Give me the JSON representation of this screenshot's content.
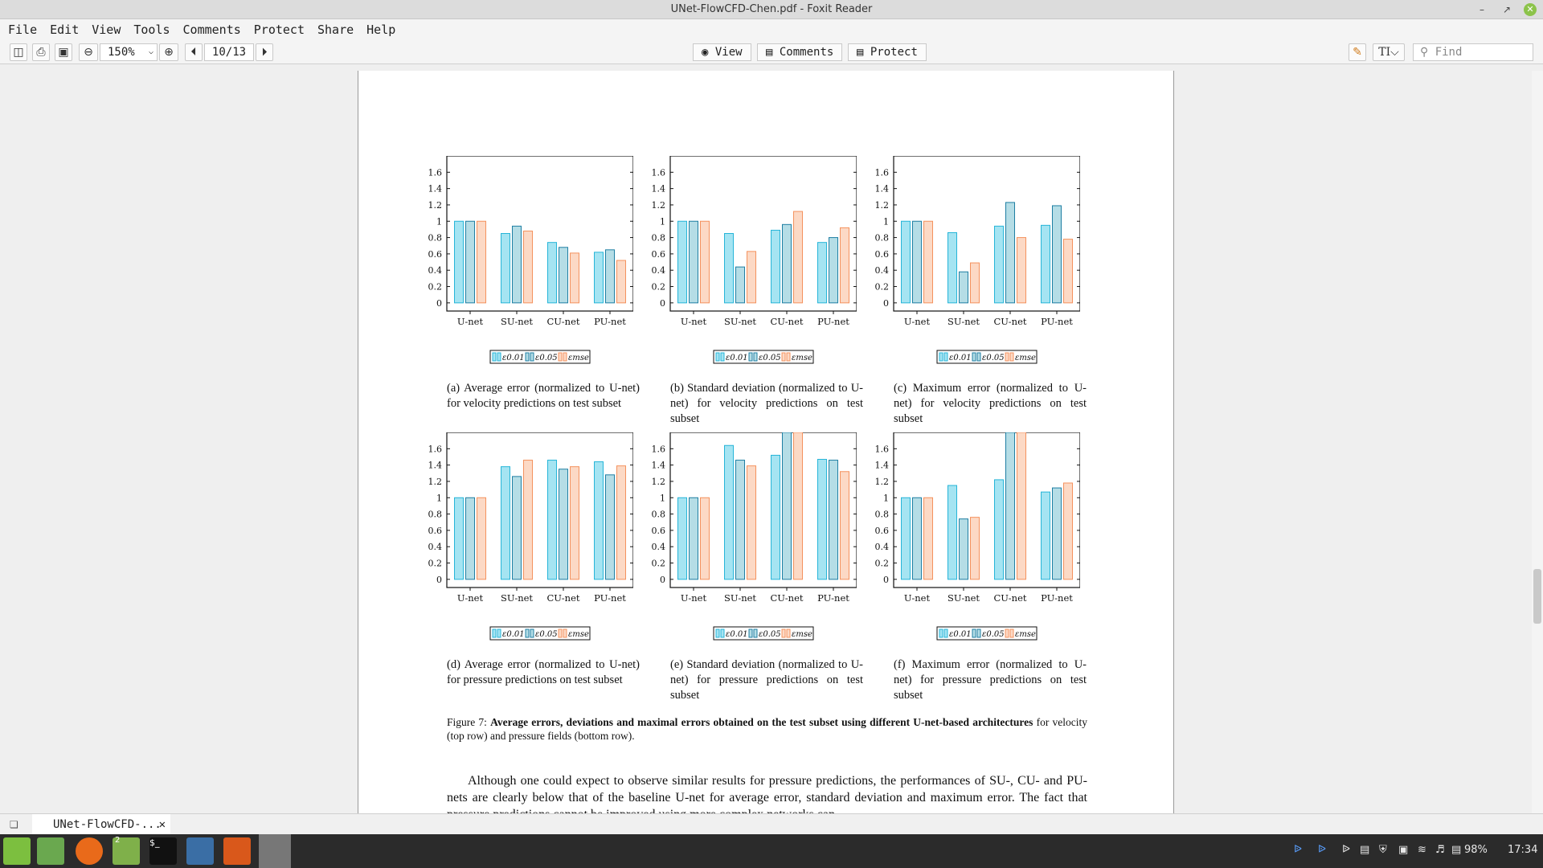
{
  "window": {
    "title": "UNet-FlowCFD-Chen.pdf - Foxit Reader"
  },
  "menu": [
    "File",
    "Edit",
    "View",
    "Tools",
    "Comments",
    "Protect",
    "Share",
    "Help"
  ],
  "toolbar": {
    "zoom": "150%",
    "page": "10/13",
    "modes": [
      "View",
      "Comments",
      "Protect"
    ],
    "find_placeholder": "Find"
  },
  "figure": {
    "captions": [
      "(a) Average error (normalized to U-net) for velocity predictions on test subset",
      "(b) Standard deviation (normalized to U-net) for velocity predictions on test subset",
      "(c) Maximum error (normalized to U-net) for velocity predictions on test subset",
      "(d) Average error (normalized to U-net) for pressure predictions on test subset",
      "(e) Standard deviation (normalized to U-net) for pressure predictions on test subset",
      "(f) Maximum error (normalized to U-net) for pressure predictions on test subset"
    ],
    "caption_label": "Figure 7:",
    "caption_bold": "Average errors, deviations and maximal errors obtained on the test subset using different U-net-based architectures",
    "caption_rest": " for velocity (top row) and pressure fields (bottom row).",
    "legend": [
      "ε0.01",
      "ε0.05",
      "εmse"
    ]
  },
  "body_text": "Although one could expect to observe similar results for pressure predictions, the performances of SU-, CU- and PU-nets are clearly below that of the baseline U-net for average error, standard deviation and maximum error. The fact that pressure predictions cannot be improved using more complex networks can",
  "chart_data": [
    {
      "type": "bar",
      "categories": [
        "U-net",
        "SU-net",
        "CU-net",
        "PU-net"
      ],
      "series": [
        {
          "name": "ε0.01",
          "values": [
            1.0,
            0.85,
            0.74,
            0.62
          ]
        },
        {
          "name": "ε0.05",
          "values": [
            1.0,
            0.94,
            0.68,
            0.65
          ]
        },
        {
          "name": "εmse",
          "values": [
            1.0,
            0.88,
            0.61,
            0.52
          ]
        }
      ],
      "yticks": [
        "0",
        "0.2",
        "0.4",
        "0.6",
        "0.8",
        "1",
        "1.2",
        "1.4",
        "1.6"
      ],
      "ylim": [
        -0.1,
        1.8
      ]
    },
    {
      "type": "bar",
      "categories": [
        "U-net",
        "SU-net",
        "CU-net",
        "PU-net"
      ],
      "series": [
        {
          "name": "ε0.01",
          "values": [
            1.0,
            0.85,
            0.89,
            0.74
          ]
        },
        {
          "name": "ε0.05",
          "values": [
            1.0,
            0.44,
            0.96,
            0.8
          ]
        },
        {
          "name": "εmse",
          "values": [
            1.0,
            0.63,
            1.12,
            0.92
          ]
        }
      ],
      "yticks": [
        "0",
        "0.2",
        "0.4",
        "0.6",
        "0.8",
        "1",
        "1.2",
        "1.4",
        "1.6"
      ],
      "ylim": [
        -0.1,
        1.8
      ]
    },
    {
      "type": "bar",
      "categories": [
        "U-net",
        "SU-net",
        "CU-net",
        "PU-net"
      ],
      "series": [
        {
          "name": "ε0.01",
          "values": [
            1.0,
            0.86,
            0.94,
            0.95
          ]
        },
        {
          "name": "ε0.05",
          "values": [
            1.0,
            0.38,
            1.23,
            1.19
          ]
        },
        {
          "name": "εmse",
          "values": [
            1.0,
            0.49,
            0.8,
            0.78
          ]
        }
      ],
      "yticks": [
        "0",
        "0.2",
        "0.4",
        "0.6",
        "0.8",
        "1",
        "1.2",
        "1.4",
        "1.6"
      ],
      "ylim": [
        -0.1,
        1.8
      ]
    },
    {
      "type": "bar",
      "categories": [
        "U-net",
        "SU-net",
        "CU-net",
        "PU-net"
      ],
      "series": [
        {
          "name": "ε0.01",
          "values": [
            1.0,
            1.38,
            1.46,
            1.44
          ]
        },
        {
          "name": "ε0.05",
          "values": [
            1.0,
            1.26,
            1.35,
            1.28
          ]
        },
        {
          "name": "εmse",
          "values": [
            1.0,
            1.46,
            1.38,
            1.39
          ]
        }
      ],
      "yticks": [
        "0",
        "0.2",
        "0.4",
        "0.6",
        "0.8",
        "1",
        "1.2",
        "1.4",
        "1.6"
      ],
      "ylim": [
        -0.1,
        1.8
      ]
    },
    {
      "type": "bar",
      "categories": [
        "U-net",
        "SU-net",
        "CU-net",
        "PU-net"
      ],
      "series": [
        {
          "name": "ε0.01",
          "values": [
            1.0,
            1.64,
            1.52,
            1.47
          ]
        },
        {
          "name": "ε0.05",
          "values": [
            1.0,
            1.46,
            1.8,
            1.46
          ]
        },
        {
          "name": "εmse",
          "values": [
            1.0,
            1.39,
            1.8,
            1.32
          ]
        }
      ],
      "yticks": [
        "0",
        "0.2",
        "0.4",
        "0.6",
        "0.8",
        "1",
        "1.2",
        "1.4",
        "1.6"
      ],
      "ylim": [
        -0.1,
        1.8
      ]
    },
    {
      "type": "bar",
      "categories": [
        "U-net",
        "SU-net",
        "CU-net",
        "PU-net"
      ],
      "series": [
        {
          "name": "ε0.01",
          "values": [
            1.0,
            1.15,
            1.22,
            1.07
          ]
        },
        {
          "name": "ε0.05",
          "values": [
            1.0,
            0.74,
            1.8,
            1.12
          ]
        },
        {
          "name": "εmse",
          "values": [
            1.0,
            0.76,
            1.8,
            1.18
          ]
        }
      ],
      "yticks": [
        "0",
        "0.2",
        "0.4",
        "0.6",
        "0.8",
        "1",
        "1.2",
        "1.4",
        "1.6"
      ],
      "ylim": [
        -0.1,
        1.8
      ]
    }
  ],
  "tabs": [
    {
      "label": "UNet-FlowCFD-..."
    }
  ],
  "taskbar": {
    "battery": "98%",
    "clock": "17:34",
    "badge": "2"
  },
  "colors": {
    "bar1": "#a5e4f2",
    "bar1_stroke": "#26b5d8",
    "bar2": "#b5dde6",
    "bar2_stroke": "#1f7fa3",
    "bar3": "#fcd9c5",
    "bar3_stroke": "#f4925e"
  }
}
